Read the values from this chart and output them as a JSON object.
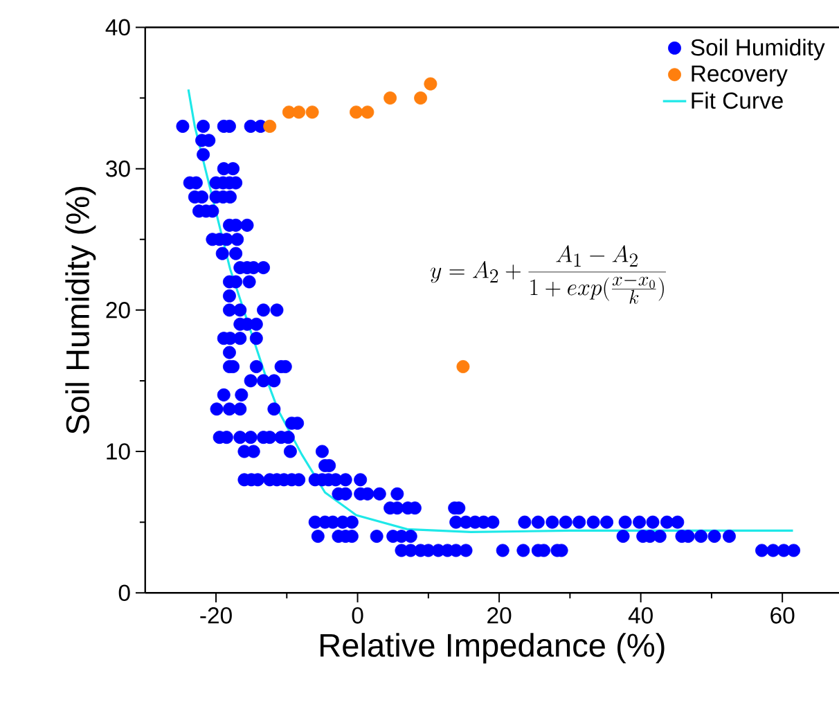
{
  "chart_data": {
    "type": "scatter",
    "xlabel": "Relative Impedance (%)",
    "ylabel": "Soil Humidity (%)",
    "xlim": [
      -30,
      68
    ],
    "ylim": [
      0,
      40
    ],
    "xticks": [
      -20,
      0,
      20,
      40,
      60
    ],
    "yticks": [
      0,
      10,
      20,
      30,
      40
    ],
    "legend": "top right",
    "marker": "circle",
    "annotations": [
      "y = A_2 + \\frac{A_1 - A_2}{1 + exp(\\frac{x - x_0}{k})}"
    ],
    "series": [
      {
        "name": "Soil Humidity",
        "color": "#0000ff",
        "x": [
          -24.7,
          -21.8,
          -18.9,
          -18.1,
          -15.1,
          -13.7,
          -22,
          -21,
          -21.8,
          -18.9,
          -17.6,
          -23.7,
          -22.8,
          -20,
          -19,
          -18.1,
          -17.2,
          -23,
          -22,
          -20,
          -19,
          -18,
          -22.4,
          -21.4,
          -20.5,
          -18.1,
          -17.2,
          -15.6,
          -20.5,
          -19.5,
          -18.5,
          -17,
          -19.1,
          -17.2,
          -16.6,
          -15.6,
          -14.7,
          -13.3,
          -18.1,
          -17.2,
          -15.3,
          -18.1,
          -18.1,
          -16.6,
          -13.3,
          -11.4,
          -16.6,
          -15.6,
          -14.3,
          -18.9,
          -18,
          -16.6,
          -14.3,
          -18.1,
          -18.1,
          -17.6,
          -14.3,
          -10.8,
          -10.2,
          -15.1,
          -13.3,
          -11.8,
          -18.9,
          -16.4,
          -19.9,
          -18.1,
          -16.6,
          -11.8,
          -9.3,
          -8.5,
          -19.5,
          -18.5,
          -16.6,
          -15.1,
          -13.3,
          -12.4,
          -10.8,
          -9.8,
          -16,
          -14.7,
          -9.5,
          -5,
          -4.6,
          -4,
          -16,
          -15,
          -14.1,
          -12.4,
          -11.4,
          -10.4,
          -9.3,
          -8.3,
          -6,
          -5,
          -4.1,
          -3.1,
          -1.7,
          0.4,
          -2.7,
          -1.7,
          0.4,
          1.4,
          3.1,
          5.6,
          4.6,
          5.6,
          7.1,
          8.1,
          13.7,
          14.3,
          -6,
          -4.6,
          -3.5,
          -2.1,
          -0.8,
          13.9,
          15.3,
          16.6,
          17.8,
          19.1,
          23.6,
          25.5,
          27.5,
          29.4,
          31.3,
          33.3,
          35.2,
          37.8,
          39.8,
          41.7,
          43.7,
          45.2,
          -5.6,
          -2.7,
          -1.7,
          -0.8,
          2.7,
          5,
          6.2,
          7.5,
          37.5,
          40.3,
          41.3,
          42.7,
          45.8,
          46.7,
          48.5,
          50.4,
          52.5,
          6.2,
          7.5,
          8.9,
          10,
          11.4,
          12.7,
          13.9,
          15.3,
          20.5,
          23.4,
          25.5,
          26.3,
          28.2,
          28.8,
          57.1,
          58.7,
          60.2,
          61.6
        ],
        "values": [
          33,
          33,
          33,
          33,
          33,
          33,
          32,
          32,
          31,
          30,
          30,
          29,
          29,
          29,
          29,
          29,
          29,
          28,
          28,
          28,
          28,
          28,
          27,
          27,
          27,
          26,
          26,
          26,
          25,
          25,
          25,
          25,
          24,
          24,
          23,
          23,
          23,
          23,
          22,
          22,
          22,
          21,
          20,
          20,
          20,
          20,
          19,
          19,
          19,
          18,
          18,
          18,
          18,
          17,
          16,
          16,
          16,
          16,
          16,
          15,
          15,
          15,
          14,
          14,
          13,
          13,
          13,
          13,
          12,
          12,
          11,
          11,
          11,
          11,
          11,
          11,
          11,
          11,
          10,
          10,
          10,
          10,
          9,
          9,
          8,
          8,
          8,
          8,
          8,
          8,
          8,
          8,
          8,
          8,
          8,
          8,
          8,
          8,
          7,
          7,
          7,
          7,
          7,
          7,
          6,
          6,
          6,
          6,
          6,
          6,
          5,
          5,
          5,
          5,
          5,
          5,
          5,
          5,
          5,
          5,
          5,
          5,
          5,
          5,
          5,
          5,
          5,
          5,
          5,
          5,
          5,
          5,
          4,
          4,
          4,
          4,
          4,
          4,
          4,
          4,
          4,
          4,
          4,
          4,
          4,
          4,
          4,
          4,
          4,
          3,
          3,
          3,
          3,
          3,
          3,
          3,
          3,
          3,
          3,
          3,
          3,
          3,
          3,
          3,
          3,
          3,
          3
        ]
      },
      {
        "name": "Recovery",
        "color": "#ff7f0e",
        "x": [
          -12.4,
          -9.7,
          -8.3,
          -6.4,
          -0.2,
          1.4,
          4.6,
          8.9,
          10.3,
          14.9
        ],
        "values": [
          33,
          34,
          34,
          34,
          34,
          34,
          35,
          35,
          36,
          16
        ]
      },
      {
        "name": "Fit Curve",
        "color": "#1ee8e8",
        "type": "line",
        "marker": "none",
        "x": [
          -23.9,
          -23,
          -18,
          -12.7,
          -11.2,
          -7.9,
          -4.6,
          -0.2,
          7,
          16,
          30,
          45,
          61.5
        ],
        "values": [
          35.6,
          33,
          22.9,
          14.9,
          12.9,
          9.8,
          7.1,
          5.5,
          4.5,
          4.3,
          4.4,
          4.4,
          4.4
        ]
      }
    ]
  }
}
